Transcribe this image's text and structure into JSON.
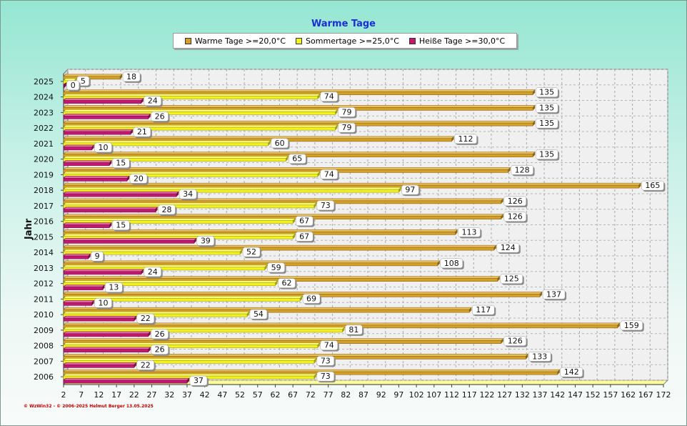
{
  "credit": "© WzWin32 - © 2006-2025 Helmut Berger  13.05.2025",
  "colors": {
    "warm": "#d4a028",
    "sommer": "#f3f21c",
    "heiss": "#c41870"
  },
  "chart_data": {
    "type": "bar",
    "orientation": "horizontal",
    "title": "Warme Tage",
    "ylabel": "Jahr",
    "xlabel": "",
    "legend_position": "top",
    "grid": true,
    "xlim": [
      2,
      172
    ],
    "x_ticks": [
      2,
      7,
      12,
      17,
      22,
      27,
      32,
      37,
      42,
      47,
      52,
      57,
      62,
      67,
      72,
      77,
      82,
      87,
      92,
      97,
      102,
      107,
      112,
      117,
      122,
      127,
      132,
      137,
      142,
      147,
      152,
      157,
      162,
      167,
      172
    ],
    "categories": [
      "2025",
      "2024",
      "2023",
      "2022",
      "2021",
      "2020",
      "2019",
      "2018",
      "2017",
      "2016",
      "2015",
      "2014",
      "2013",
      "2012",
      "2011",
      "2010",
      "2009",
      "2008",
      "2007",
      "2006"
    ],
    "series": [
      {
        "name": "Warme Tage >=20,0°C",
        "values": [
          18,
          135,
          135,
          135,
          112,
          135,
          128,
          165,
          126,
          126,
          113,
          124,
          108,
          125,
          137,
          117,
          159,
          126,
          133,
          142
        ]
      },
      {
        "name": "Sommertage >=25,0°C",
        "values": [
          5,
          74,
          79,
          79,
          60,
          65,
          74,
          97,
          73,
          67,
          67,
          52,
          59,
          62,
          69,
          54,
          81,
          74,
          73,
          73
        ]
      },
      {
        "name": "Heiße Tage >=30,0°C",
        "values": [
          0,
          24,
          26,
          21,
          10,
          15,
          20,
          34,
          28,
          15,
          39,
          9,
          24,
          13,
          10,
          22,
          26,
          26,
          22,
          37
        ]
      }
    ]
  }
}
